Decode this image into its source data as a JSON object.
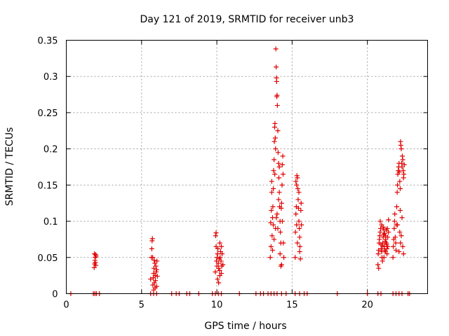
{
  "chart_data": {
    "type": "scatter",
    "title": "Day 121 of 2019, SRMTID for receiver unb3",
    "xlabel": "GPS time / hours",
    "ylabel": "SRMTID / TECUs",
    "xlim": [
      0,
      24
    ],
    "ylim": [
      0,
      0.35
    ],
    "xticks": [
      0,
      5,
      10,
      15,
      20
    ],
    "xtick_labels": [
      "0",
      "5",
      "10",
      "15",
      "20"
    ],
    "yticks": [
      0,
      0.05,
      0.1,
      0.15,
      0.2,
      0.25,
      0.3,
      0.35
    ],
    "ytick_labels": [
      "0",
      "0.05",
      "0.1",
      "0.15",
      "0.2",
      "0.25",
      "0.3",
      "0.35"
    ],
    "grid": true,
    "marker": "plus",
    "color": "#e00000",
    "series": [
      {
        "name": "SRMTID",
        "points": [
          [
            0.3,
            0
          ],
          [
            1.8,
            0
          ],
          [
            1.9,
            0
          ],
          [
            2.0,
            0
          ],
          [
            2.2,
            0
          ],
          [
            5.6,
            0
          ],
          [
            5.8,
            0
          ],
          [
            6.0,
            0
          ],
          [
            7.0,
            0
          ],
          [
            7.3,
            0
          ],
          [
            7.5,
            0
          ],
          [
            8.0,
            0
          ],
          [
            8.2,
            0
          ],
          [
            8.8,
            0
          ],
          [
            9.7,
            0
          ],
          [
            9.9,
            0
          ],
          [
            10.1,
            0
          ],
          [
            10.3,
            0
          ],
          [
            11.5,
            0
          ],
          [
            12.6,
            0
          ],
          [
            12.9,
            0
          ],
          [
            13.1,
            0
          ],
          [
            13.4,
            0
          ],
          [
            13.6,
            0
          ],
          [
            13.8,
            0
          ],
          [
            14.0,
            0
          ],
          [
            14.3,
            0
          ],
          [
            14.6,
            0
          ],
          [
            15.2,
            0
          ],
          [
            15.5,
            0
          ],
          [
            15.8,
            0
          ],
          [
            16.0,
            0
          ],
          [
            18.0,
            0
          ],
          [
            20.0,
            0
          ],
          [
            20.7,
            0
          ],
          [
            20.9,
            0
          ],
          [
            21.7,
            0
          ],
          [
            21.9,
            0
          ],
          [
            22.1,
            0
          ],
          [
            22.3,
            0
          ],
          [
            22.7,
            0
          ],
          [
            22.8,
            0
          ],
          [
            1.85,
            0.036
          ],
          [
            1.88,
            0.041
          ],
          [
            1.9,
            0.046
          ],
          [
            1.92,
            0.05
          ],
          [
            1.95,
            0.054
          ],
          [
            1.98,
            0.052
          ],
          [
            1.87,
            0.055
          ],
          [
            1.93,
            0.043
          ],
          [
            1.96,
            0.039
          ],
          [
            5.6,
            0.02
          ],
          [
            5.65,
            0.05
          ],
          [
            5.7,
            0.073
          ],
          [
            5.72,
            0.076
          ],
          [
            5.75,
            0.012
          ],
          [
            5.78,
            0.022
          ],
          [
            5.8,
            0.028
          ],
          [
            5.82,
            0.035
          ],
          [
            5.85,
            0.015
          ],
          [
            5.88,
            0.042
          ],
          [
            5.9,
            0.025
          ],
          [
            5.92,
            0.018
          ],
          [
            5.95,
            0.038
          ],
          [
            5.97,
            0.03
          ],
          [
            6.0,
            0.01
          ],
          [
            6.02,
            0.045
          ],
          [
            6.05,
            0.024
          ],
          [
            5.68,
            0.062
          ],
          [
            5.74,
            0.05
          ],
          [
            5.9,
            0.008
          ],
          [
            6.0,
            0.033
          ],
          [
            5.84,
            0.046
          ],
          [
            5.8,
            0.005
          ],
          [
            9.9,
            0.03
          ],
          [
            9.92,
            0.08
          ],
          [
            9.95,
            0.084
          ],
          [
            9.97,
            0.045
          ],
          [
            10.0,
            0.038
          ],
          [
            10.02,
            0.05
          ],
          [
            10.05,
            0.055
          ],
          [
            10.07,
            0.062
          ],
          [
            10.1,
            0.042
          ],
          [
            10.12,
            0.035
          ],
          [
            10.15,
            0.048
          ],
          [
            10.18,
            0.032
          ],
          [
            10.2,
            0.025
          ],
          [
            10.22,
            0.05
          ],
          [
            10.25,
            0.058
          ],
          [
            10.28,
            0.045
          ],
          [
            10.3,
            0.065
          ],
          [
            10.32,
            0.038
          ],
          [
            10.35,
            0.055
          ],
          [
            10.4,
            0.04
          ],
          [
            10.05,
            0.02
          ],
          [
            9.95,
            0.065
          ],
          [
            10.12,
            0.015
          ],
          [
            10.3,
            0.028
          ],
          [
            10.2,
            0.07
          ],
          [
            13.55,
            0.05
          ],
          [
            13.58,
            0.098
          ],
          [
            13.6,
            0.065
          ],
          [
            13.62,
            0.115
          ],
          [
            13.65,
            0.14
          ],
          [
            13.67,
            0.08
          ],
          [
            13.7,
            0.105
          ],
          [
            13.72,
            0.12
          ],
          [
            13.75,
            0.095
          ],
          [
            13.77,
            0.17
          ],
          [
            13.8,
            0.185
          ],
          [
            13.82,
            0.21
          ],
          [
            13.84,
            0.23
          ],
          [
            13.86,
            0.235
          ],
          [
            13.88,
            0.215
          ],
          [
            13.9,
            0.2
          ],
          [
            13.92,
            0.338
          ],
          [
            13.94,
            0.313
          ],
          [
            13.96,
            0.298
          ],
          [
            13.97,
            0.293
          ],
          [
            13.98,
            0.272
          ],
          [
            14.0,
            0.274
          ],
          [
            14.02,
            0.26
          ],
          [
            14.05,
            0.225
          ],
          [
            14.07,
            0.195
          ],
          [
            14.1,
            0.18
          ],
          [
            14.12,
            0.16
          ],
          [
            14.15,
            0.14
          ],
          [
            14.17,
            0.12
          ],
          [
            14.2,
            0.1
          ],
          [
            14.22,
            0.085
          ],
          [
            14.25,
            0.07
          ],
          [
            14.28,
            0.118
          ],
          [
            14.3,
            0.125
          ],
          [
            14.33,
            0.15
          ],
          [
            14.35,
            0.178
          ],
          [
            14.38,
            0.19
          ],
          [
            14.4,
            0.165
          ],
          [
            14.42,
            0.07
          ],
          [
            14.45,
            0.05
          ],
          [
            14.25,
            0.038
          ],
          [
            14.3,
            0.04
          ],
          [
            13.7,
            0.06
          ],
          [
            13.8,
            0.075
          ],
          [
            13.9,
            0.09
          ],
          [
            14.0,
            0.11
          ],
          [
            14.1,
            0.13
          ],
          [
            13.65,
            0.155
          ],
          [
            13.75,
            0.145
          ],
          [
            13.85,
            0.165
          ],
          [
            14.15,
            0.175
          ],
          [
            14.05,
            0.09
          ],
          [
            13.95,
            0.105
          ],
          [
            14.35,
            0.1
          ],
          [
            14.2,
            0.055
          ],
          [
            15.2,
            0.05
          ],
          [
            15.22,
            0.085
          ],
          [
            15.25,
            0.11
          ],
          [
            15.28,
            0.12
          ],
          [
            15.3,
            0.15
          ],
          [
            15.32,
            0.163
          ],
          [
            15.35,
            0.16
          ],
          [
            15.38,
            0.145
          ],
          [
            15.4,
            0.13
          ],
          [
            15.42,
            0.118
          ],
          [
            15.45,
            0.1
          ],
          [
            15.48,
            0.09
          ],
          [
            15.5,
            0.078
          ],
          [
            15.52,
            0.065
          ],
          [
            15.55,
            0.048
          ],
          [
            15.58,
            0.115
          ],
          [
            15.6,
            0.125
          ],
          [
            15.62,
            0.095
          ],
          [
            15.35,
            0.07
          ],
          [
            15.25,
            0.155
          ],
          [
            15.45,
            0.14
          ],
          [
            15.5,
            0.058
          ],
          [
            15.3,
            0.095
          ],
          [
            20.7,
            0.04
          ],
          [
            20.72,
            0.055
          ],
          [
            20.75,
            0.06
          ],
          [
            20.78,
            0.07
          ],
          [
            20.8,
            0.075
          ],
          [
            20.82,
            0.08
          ],
          [
            20.85,
            0.085
          ],
          [
            20.88,
            0.09
          ],
          [
            20.9,
            0.068
          ],
          [
            20.92,
            0.062
          ],
          [
            20.95,
            0.058
          ],
          [
            20.97,
            0.05
          ],
          [
            21.0,
            0.045
          ],
          [
            21.02,
            0.07
          ],
          [
            21.05,
            0.078
          ],
          [
            21.08,
            0.082
          ],
          [
            21.1,
            0.088
          ],
          [
            21.12,
            0.065
          ],
          [
            21.15,
            0.06
          ],
          [
            21.18,
            0.072
          ],
          [
            21.2,
            0.08
          ],
          [
            21.22,
            0.075
          ],
          [
            21.25,
            0.07
          ],
          [
            21.28,
            0.068
          ],
          [
            21.3,
            0.062
          ],
          [
            21.32,
            0.09
          ],
          [
            21.35,
            0.078
          ],
          [
            21.4,
            0.085
          ],
          [
            20.85,
            0.1
          ],
          [
            20.95,
            0.095
          ],
          [
            21.05,
            0.092
          ],
          [
            21.15,
            0.083
          ],
          [
            21.25,
            0.088
          ],
          [
            21.35,
            0.065
          ],
          [
            21.4,
            0.102
          ],
          [
            20.75,
            0.035
          ],
          [
            21.1,
            0.05
          ],
          [
            21.3,
            0.055
          ],
          [
            21.2,
            0.058
          ],
          [
            21.0,
            0.066
          ],
          [
            21.7,
            0.05
          ],
          [
            21.72,
            0.065
          ],
          [
            21.75,
            0.075
          ],
          [
            21.78,
            0.09
          ],
          [
            21.8,
            0.1
          ],
          [
            21.82,
            0.11
          ],
          [
            21.85,
            0.078
          ],
          [
            21.88,
            0.07
          ],
          [
            21.9,
            0.06
          ],
          [
            21.92,
            0.095
          ],
          [
            21.95,
            0.12
          ],
          [
            21.98,
            0.14
          ],
          [
            22.0,
            0.15
          ],
          [
            22.02,
            0.165
          ],
          [
            22.05,
            0.17
          ],
          [
            22.08,
            0.175
          ],
          [
            22.1,
            0.18
          ],
          [
            22.12,
            0.168
          ],
          [
            22.15,
            0.155
          ],
          [
            22.18,
            0.145
          ],
          [
            22.2,
            0.21
          ],
          [
            22.22,
            0.205
          ],
          [
            22.25,
            0.2
          ],
          [
            22.28,
            0.18
          ],
          [
            22.3,
            0.175
          ],
          [
            22.32,
            0.19
          ],
          [
            22.35,
            0.185
          ],
          [
            22.38,
            0.17
          ],
          [
            22.4,
            0.16
          ],
          [
            22.42,
            0.165
          ],
          [
            22.45,
            0.178
          ],
          [
            22.18,
            0.115
          ],
          [
            22.25,
            0.08
          ],
          [
            22.3,
            0.105
          ],
          [
            22.35,
            0.065
          ],
          [
            22.1,
            0.058
          ],
          [
            22.0,
            0.095
          ],
          [
            22.15,
            0.085
          ],
          [
            22.4,
            0.055
          ],
          [
            22.2,
            0.07
          ]
        ]
      }
    ]
  }
}
